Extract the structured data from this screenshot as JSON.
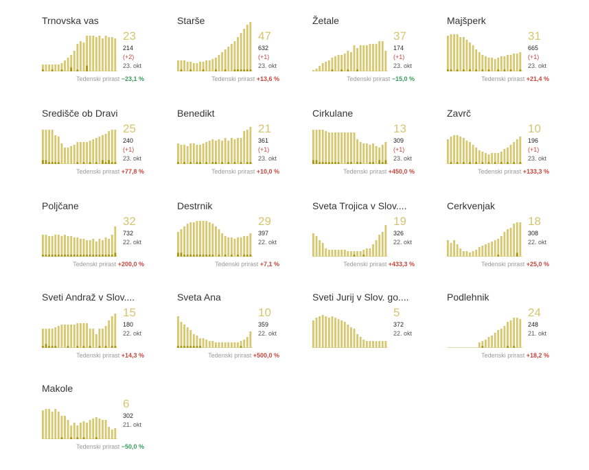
{
  "colors": {
    "bar_light": "#d7c870",
    "bar_dark": "#a8960f",
    "up": "#c4453b",
    "down": "#3a9a5b",
    "value": "#d4c570"
  },
  "growth_label": "Tedenski prirast",
  "chart_data": [
    {
      "type": "bar",
      "title": "Trnovska vas",
      "value": "23",
      "total": "214",
      "delta": "(+2)",
      "date": "23. okt",
      "growth": "−23,1 %",
      "direction": "down",
      "values": [
        5,
        5,
        5,
        5,
        5,
        5,
        6,
        8,
        10,
        12,
        15,
        20,
        22,
        21,
        26,
        26,
        26,
        25,
        26,
        24,
        26,
        25,
        25,
        24
      ],
      "dark": [
        1,
        0,
        0,
        1,
        0,
        0,
        1,
        0,
        0,
        2,
        0,
        1,
        0,
        0,
        3,
        0,
        0,
        0,
        0,
        0,
        0,
        0,
        0,
        0
      ]
    },
    {
      "type": "bar",
      "title": "Starše",
      "value": "47",
      "total": "632",
      "delta": "(+1)",
      "date": "23. okt",
      "growth": "+13,6 %",
      "direction": "up",
      "values": [
        8,
        8,
        8,
        7,
        7,
        6,
        6,
        7,
        7,
        8,
        8,
        9,
        10,
        12,
        14,
        16,
        18,
        20,
        22,
        25,
        28,
        31,
        34,
        36
      ],
      "dark": [
        0,
        1,
        0,
        0,
        1,
        0,
        0,
        0,
        1,
        0,
        0,
        0,
        1,
        0,
        0,
        1,
        0,
        0,
        1,
        1,
        1,
        1,
        1,
        1
      ]
    },
    {
      "type": "bar",
      "title": "Žetale",
      "value": "37",
      "total": "174",
      "delta": "(+1)",
      "date": "23. okt",
      "growth": "−15,0 %",
      "direction": "down",
      "values": [
        1,
        2,
        4,
        6,
        7,
        8,
        10,
        11,
        12,
        12,
        13,
        15,
        14,
        19,
        17,
        19,
        19,
        19,
        20,
        20,
        20,
        22,
        22,
        15
      ],
      "dark": [
        0,
        0,
        0,
        0,
        0,
        0,
        1,
        0,
        0,
        1,
        0,
        1,
        0,
        0,
        1,
        0,
        0,
        0,
        0,
        0,
        0,
        0,
        0,
        0
      ]
    },
    {
      "type": "bar",
      "title": "Majšperk",
      "value": "31",
      "total": "665",
      "delta": "(+1)",
      "date": "23. okt",
      "growth": "+21,4 %",
      "direction": "up",
      "values": [
        26,
        27,
        27,
        27,
        25,
        25,
        23,
        21,
        19,
        16,
        14,
        12,
        11,
        10,
        10,
        9,
        10,
        11,
        11,
        12,
        12,
        13,
        13,
        14
      ],
      "dark": [
        1,
        1,
        0,
        1,
        0,
        1,
        0,
        1,
        0,
        1,
        0,
        1,
        0,
        1,
        0,
        0,
        1,
        0,
        1,
        0,
        1,
        0,
        0,
        1
      ]
    },
    {
      "type": "bar",
      "title": "Središče ob Dravi",
      "value": "25",
      "total": "240",
      "delta": "(+1)",
      "date": "23. okt",
      "growth": "+77,8 %",
      "direction": "up",
      "values": [
        25,
        25,
        25,
        25,
        21,
        20,
        15,
        12,
        12,
        13,
        14,
        16,
        16,
        16,
        16,
        17,
        18,
        19,
        20,
        21,
        22,
        24,
        25,
        25
      ],
      "dark": [
        2,
        2,
        1,
        1,
        1,
        1,
        0,
        0,
        0,
        0,
        0,
        1,
        0,
        1,
        0,
        1,
        0,
        1,
        0,
        2,
        1,
        2,
        1,
        1
      ]
    },
    {
      "type": "bar",
      "title": "Benedikt",
      "value": "21",
      "total": "361",
      "delta": "(+1)",
      "date": "23. okt",
      "growth": "+10,0 %",
      "direction": "up",
      "values": [
        15,
        14,
        14,
        13,
        15,
        15,
        14,
        14,
        15,
        16,
        17,
        18,
        17,
        18,
        17,
        19,
        17,
        19,
        18,
        19,
        19,
        24,
        25,
        27
      ],
      "dark": [
        1,
        0,
        1,
        0,
        1,
        0,
        1,
        1,
        0,
        1,
        0,
        1,
        1,
        0,
        1,
        0,
        1,
        0,
        1,
        0,
        1,
        0,
        1,
        1
      ]
    },
    {
      "type": "bar",
      "title": "Cirkulane",
      "value": "13",
      "total": "309",
      "delta": "(+1)",
      "date": "23. okt",
      "growth": "+450,0 %",
      "direction": "up",
      "values": [
        25,
        25,
        25,
        25,
        24,
        23,
        23,
        23,
        23,
        23,
        23,
        23,
        23,
        23,
        18,
        16,
        15,
        15,
        14,
        15,
        13,
        12,
        14,
        16
      ],
      "dark": [
        2,
        2,
        1,
        1,
        1,
        1,
        1,
        1,
        1,
        0,
        0,
        1,
        1,
        0,
        1,
        1,
        0,
        0,
        1,
        1,
        0,
        2,
        1,
        2
      ]
    },
    {
      "type": "bar",
      "title": "Zavrč",
      "value": "10",
      "total": "196",
      "delta": "(+1)",
      "date": "23. okt",
      "growth": "+133,3 %",
      "direction": "up",
      "values": [
        18,
        20,
        21,
        21,
        20,
        19,
        17,
        16,
        14,
        12,
        10,
        9,
        8,
        7,
        8,
        8,
        8,
        9,
        11,
        12,
        14,
        16,
        18,
        20
      ],
      "dark": [
        0,
        1,
        0,
        1,
        0,
        1,
        0,
        1,
        0,
        1,
        0,
        1,
        0,
        1,
        0,
        1,
        0,
        1,
        0,
        1,
        0,
        1,
        0,
        1
      ]
    },
    {
      "type": "bar",
      "title": "Poljčane",
      "value": "32",
      "total": "732",
      "delta": "",
      "date": "22. okt",
      "growth": "+200,0 %",
      "direction": "up",
      "values": [
        16,
        16,
        15,
        15,
        16,
        16,
        15,
        16,
        15,
        15,
        14,
        14,
        13,
        13,
        12,
        12,
        13,
        11,
        13,
        12,
        14,
        13,
        16,
        22
      ],
      "dark": [
        1,
        1,
        1,
        1,
        1,
        1,
        1,
        1,
        1,
        1,
        1,
        1,
        1,
        1,
        1,
        1,
        1,
        1,
        1,
        1,
        1,
        1,
        1,
        2
      ]
    },
    {
      "type": "bar",
      "title": "Destrnik",
      "value": "29",
      "total": "397",
      "delta": "",
      "date": "22. okt",
      "growth": "+7,1 %",
      "direction": "up",
      "values": [
        18,
        20,
        22,
        24,
        25,
        25,
        26,
        26,
        26,
        26,
        25,
        24,
        22,
        20,
        17,
        15,
        14,
        14,
        13,
        14,
        14,
        15,
        15,
        17
      ],
      "dark": [
        2,
        2,
        1,
        1,
        1,
        1,
        1,
        1,
        1,
        1,
        1,
        1,
        0,
        1,
        0,
        1,
        0,
        1,
        0,
        1,
        0,
        1,
        1,
        1
      ]
    },
    {
      "type": "bar",
      "title": "Sveta Trojica v Slov....",
      "value": "19",
      "total": "326",
      "delta": "",
      "date": "22. okt",
      "growth": "+433,3 %",
      "direction": "up",
      "values": [
        17,
        15,
        12,
        10,
        6,
        5,
        5,
        5,
        5,
        5,
        5,
        4,
        4,
        4,
        4,
        4,
        5,
        6,
        6,
        9,
        12,
        16,
        18,
        23
      ],
      "dark": [
        0,
        0,
        0,
        0,
        0,
        0,
        0,
        0,
        0,
        0,
        0,
        0,
        0,
        1,
        0,
        0,
        1,
        0,
        0,
        0,
        0,
        0,
        0,
        0
      ]
    },
    {
      "type": "bar",
      "title": "Cerkvenjak",
      "value": "18",
      "total": "308",
      "delta": "",
      "date": "22. okt",
      "growth": "+25,0 %",
      "direction": "up",
      "values": [
        12,
        10,
        12,
        9,
        6,
        4,
        4,
        3,
        4,
        5,
        7,
        8,
        9,
        10,
        11,
        12,
        13,
        15,
        18,
        20,
        21,
        24,
        25,
        25
      ],
      "dark": [
        0,
        0,
        0,
        0,
        0,
        0,
        0,
        0,
        0,
        0,
        0,
        0,
        0,
        0,
        0,
        0,
        1,
        0,
        0,
        0,
        0,
        0,
        2,
        0
      ]
    },
    {
      "type": "bar",
      "title": "Sveti Andraž v Slov....",
      "value": "15",
      "total": "180",
      "delta": "",
      "date": "22. okt",
      "growth": "+14,3 %",
      "direction": "up",
      "values": [
        14,
        14,
        14,
        14,
        15,
        16,
        17,
        17,
        17,
        17,
        17,
        18,
        18,
        18,
        18,
        14,
        14,
        10,
        14,
        14,
        16,
        20,
        23,
        25
      ],
      "dark": [
        1,
        2,
        1,
        1,
        1,
        0,
        0,
        0,
        1,
        0,
        0,
        1,
        0,
        1,
        0,
        1,
        0,
        0,
        1,
        0,
        1,
        0,
        1,
        1
      ]
    },
    {
      "type": "bar",
      "title": "Sveta Ana",
      "value": "10",
      "total": "359",
      "delta": "",
      "date": "22. okt",
      "growth": "+500,0 %",
      "direction": "up",
      "values": [
        23,
        19,
        17,
        15,
        13,
        10,
        9,
        7,
        7,
        6,
        5,
        5,
        4,
        4,
        4,
        4,
        4,
        4,
        4,
        4,
        5,
        6,
        8,
        12
      ],
      "dark": [
        1,
        1,
        1,
        1,
        1,
        1,
        1,
        1,
        0,
        0,
        0,
        0,
        0,
        0,
        0,
        0,
        0,
        0,
        0,
        0,
        1,
        0,
        0,
        0
      ]
    },
    {
      "type": "bar",
      "title": "Sveti Jurij v Slov. go....",
      "value": "5",
      "total": "372",
      "delta": "",
      "date": "22. okt",
      "growth": "",
      "direction": "up",
      "values": [
        20,
        22,
        23,
        24,
        23,
        22,
        23,
        22,
        21,
        20,
        19,
        17,
        15,
        14,
        10,
        8,
        6,
        5,
        5,
        5,
        5,
        5,
        5,
        5
      ],
      "dark": [
        0,
        0,
        0,
        0,
        0,
        0,
        0,
        0,
        0,
        0,
        0,
        0,
        0,
        0,
        0,
        0,
        0,
        0,
        0,
        0,
        0,
        0,
        0,
        0
      ]
    },
    {
      "type": "bar",
      "title": "Podlehnik",
      "value": "24",
      "total": "248",
      "delta": "",
      "date": "21. okt",
      "growth": "+18,2 %",
      "direction": "up",
      "values": [
        0,
        0,
        0,
        0,
        0,
        0,
        0,
        0,
        0,
        0,
        4,
        5,
        6,
        8,
        9,
        11,
        13,
        14,
        16,
        19,
        20,
        22,
        22,
        21
      ],
      "dark": [
        0,
        0,
        0,
        0,
        0,
        0,
        0,
        0,
        0,
        0,
        0,
        1,
        0,
        0,
        0,
        0,
        0,
        0,
        0,
        1,
        0,
        1,
        0,
        0
      ]
    },
    {
      "type": "bar",
      "title": "Makole",
      "value": "6",
      "total": "302",
      "delta": "",
      "date": "21. okt",
      "growth": "−50,0 %",
      "direction": "down",
      "values": [
        21,
        22,
        22,
        20,
        22,
        20,
        17,
        17,
        14,
        10,
        12,
        10,
        12,
        13,
        12,
        14,
        15,
        16,
        15,
        14,
        14,
        9,
        7,
        8
      ],
      "dark": [
        0,
        0,
        0,
        0,
        0,
        0,
        1,
        0,
        0,
        1,
        0,
        1,
        0,
        1,
        0,
        0,
        0,
        1,
        0,
        0,
        0,
        0,
        0,
        0
      ]
    }
  ]
}
